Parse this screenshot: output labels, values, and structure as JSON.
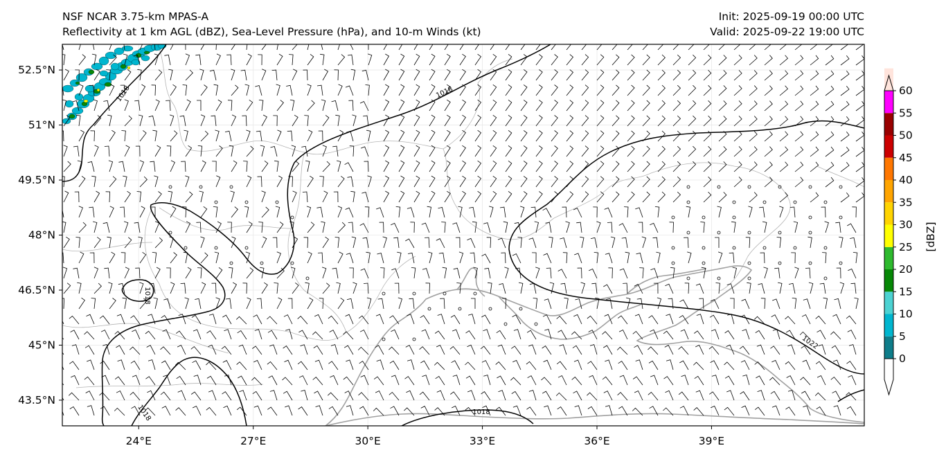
{
  "header": {
    "model": "NSF NCAR 3.75-km MPAS-A",
    "fields": "Reflectivity at 1 km AGL (dBZ), Sea-Level Pressure (hPa), and 10-m Winds (kt)",
    "init": "Init: 2025-09-19 00:00 UTC",
    "valid": "Valid: 2025-09-22 19:00 UTC"
  },
  "map": {
    "lon_range": [
      22.0,
      43.0
    ],
    "lat_range": [
      42.8,
      53.2
    ],
    "lat_ticks": [
      {
        "value": 52.5,
        "label": "52.5°N"
      },
      {
        "value": 51.0,
        "label": "51°N"
      },
      {
        "value": 49.5,
        "label": "49.5°N"
      },
      {
        "value": 48.0,
        "label": "48°N"
      },
      {
        "value": 46.5,
        "label": "46.5°N"
      },
      {
        "value": 45.0,
        "label": "45°N"
      },
      {
        "value": 43.5,
        "label": "43.5°N"
      }
    ],
    "lon_ticks": [
      {
        "value": 24,
        "label": "24°E"
      },
      {
        "value": 27,
        "label": "27°E"
      },
      {
        "value": 30,
        "label": "30°E"
      },
      {
        "value": 33,
        "label": "33°E"
      },
      {
        "value": 36,
        "label": "36°E"
      },
      {
        "value": 39,
        "label": "39°E"
      }
    ],
    "isobar_labels": [
      "1018",
      "1018",
      "1018",
      "1018",
      "1018",
      "1022"
    ],
    "colors": {
      "isobar": "#000000",
      "coast": "#a0a0a0",
      "border": "#b4b4b4",
      "grid": "#e8e8e8"
    }
  },
  "colorbar": {
    "label": "[dBZ]",
    "ticks": [
      "0",
      "5",
      "10",
      "15",
      "20",
      "25",
      "30",
      "35",
      "40",
      "45",
      "50",
      "55",
      "60"
    ],
    "bands": [
      "#0e7d8a",
      "#00b6cf",
      "#4cd2d2",
      "#068806",
      "#2eba2e",
      "#ffff00",
      "#ffd400",
      "#ffa500",
      "#ff7700",
      "#cc0000",
      "#990000",
      "#ff00ff",
      "#ffe4dc"
    ]
  }
}
